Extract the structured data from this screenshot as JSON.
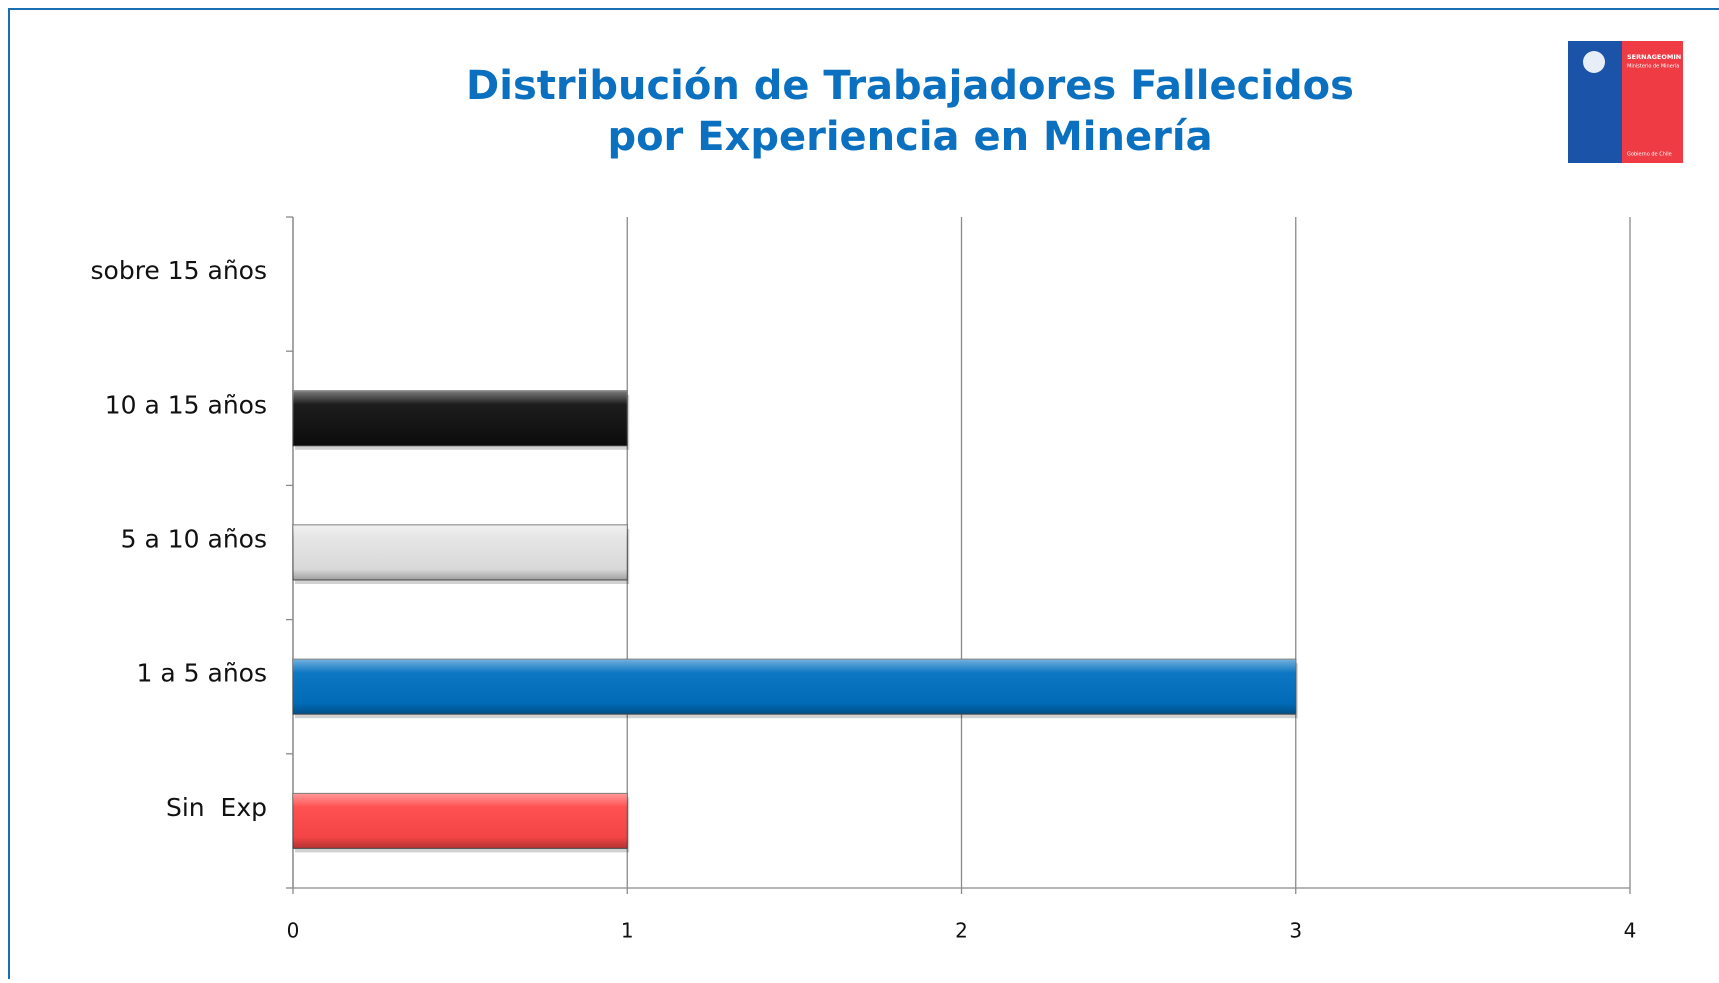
{
  "chart_data": {
    "type": "bar",
    "orientation": "horizontal",
    "title": [
      "Distribución de Trabajadores Fallecidos",
      "por Experiencia en Minería"
    ],
    "categories": [
      "sobre 15 años",
      "10 a 15 años",
      "5 a 10 años",
      "1 a 5 años",
      "Sin  Exp"
    ],
    "values": [
      0,
      1,
      1,
      3,
      1
    ],
    "colors": [
      null,
      "#111111",
      "#e4e4e4",
      "#0070c0",
      "#ff4848"
    ],
    "xlim": [
      0,
      4
    ],
    "xticks": [
      0,
      1,
      2,
      3,
      4
    ],
    "grid": true
  },
  "logo": {
    "name": "SERNAGEOMIN",
    "ministry": "Ministerio de Minería",
    "government": "Gobierno de Chile"
  }
}
